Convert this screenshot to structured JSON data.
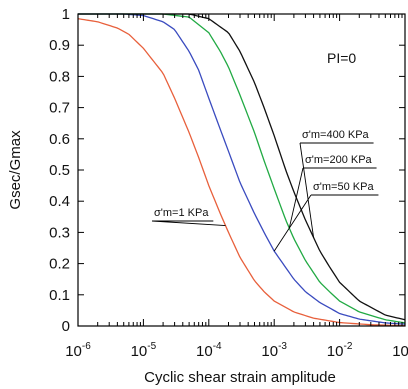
{
  "chart_data": {
    "type": "line",
    "xlabel": "Cyclic shear strain amplitude",
    "ylabel": "Gsec/Gmax",
    "x_scale": "log",
    "xlim": [
      1e-06,
      0.1
    ],
    "ylim": [
      0,
      1
    ],
    "x_ticks": [
      {
        "value": 1e-06,
        "base": "10",
        "exp": "-6"
      },
      {
        "value": 1e-05,
        "base": "10",
        "exp": "-5"
      },
      {
        "value": 0.0001,
        "base": "10",
        "exp": "-4"
      },
      {
        "value": 0.001,
        "base": "10",
        "exp": "-3"
      },
      {
        "value": 0.01,
        "base": "10",
        "exp": "-2"
      },
      {
        "value": 0.1,
        "base": "10",
        "exp": "-1"
      }
    ],
    "y_ticks": [
      "0",
      "0.1",
      "0.2",
      "0.3",
      "0.4",
      "0.5",
      "0.6",
      "0.7",
      "0.8",
      "0.9",
      "1"
    ],
    "grid": false,
    "annotation_pi": "PI=0",
    "series": [
      {
        "name": "σ'm=1 KPa",
        "color": "#e8603c",
        "points": [
          [
            1e-06,
            0.985
          ],
          [
            2e-06,
            0.975
          ],
          [
            4e-06,
            0.955
          ],
          [
            6e-06,
            0.935
          ],
          [
            1e-05,
            0.89
          ],
          [
            2e-05,
            0.81
          ],
          [
            3e-05,
            0.73
          ],
          [
            5e-05,
            0.62
          ],
          [
            7e-05,
            0.54
          ],
          [
            0.0001,
            0.45
          ],
          [
            0.00015,
            0.36
          ],
          [
            0.0002,
            0.3
          ],
          [
            0.0003,
            0.22
          ],
          [
            0.0005,
            0.145
          ],
          [
            0.0007,
            0.11
          ],
          [
            0.001,
            0.08
          ],
          [
            0.002,
            0.045
          ],
          [
            0.004,
            0.025
          ],
          [
            0.01,
            0.011
          ],
          [
            0.03,
            0.004
          ],
          [
            0.1,
            0.001
          ]
        ]
      },
      {
        "name": "σ'm=50 KPa",
        "color": "#3a4bbf",
        "points": [
          [
            1e-06,
            1.0
          ],
          [
            5e-06,
            1.0
          ],
          [
            1e-05,
            0.995
          ],
          [
            2e-05,
            0.975
          ],
          [
            3e-05,
            0.95
          ],
          [
            5e-05,
            0.88
          ],
          [
            7e-05,
            0.82
          ],
          [
            0.0001,
            0.73
          ],
          [
            0.00015,
            0.63
          ],
          [
            0.0002,
            0.56
          ],
          [
            0.0003,
            0.46
          ],
          [
            0.0005,
            0.36
          ],
          [
            0.0007,
            0.3
          ],
          [
            0.001,
            0.24
          ],
          [
            0.002,
            0.15
          ],
          [
            0.003,
            0.11
          ],
          [
            0.005,
            0.075
          ],
          [
            0.01,
            0.04
          ],
          [
            0.02,
            0.022
          ],
          [
            0.05,
            0.01
          ],
          [
            0.1,
            0.006
          ]
        ]
      },
      {
        "name": "σ'm=200 KPa",
        "color": "#22aa44",
        "points": [
          [
            1e-06,
            1.0
          ],
          [
            2e-05,
            1.0
          ],
          [
            5e-05,
            0.99
          ],
          [
            0.0001,
            0.94
          ],
          [
            0.00015,
            0.88
          ],
          [
            0.0002,
            0.83
          ],
          [
            0.0003,
            0.74
          ],
          [
            0.0005,
            0.62
          ],
          [
            0.0007,
            0.53
          ],
          [
            0.001,
            0.44
          ],
          [
            0.0015,
            0.34
          ],
          [
            0.002,
            0.28
          ],
          [
            0.003,
            0.21
          ],
          [
            0.005,
            0.14
          ],
          [
            0.007,
            0.11
          ],
          [
            0.01,
            0.08
          ],
          [
            0.02,
            0.045
          ],
          [
            0.05,
            0.02
          ],
          [
            0.1,
            0.01
          ]
        ]
      },
      {
        "name": "σ'm=400 KPa",
        "color": "#111111",
        "points": [
          [
            1e-06,
            1.0
          ],
          [
            5e-05,
            1.0
          ],
          [
            0.0001,
            0.985
          ],
          [
            0.0002,
            0.94
          ],
          [
            0.0003,
            0.88
          ],
          [
            0.0005,
            0.78
          ],
          [
            0.0007,
            0.7
          ],
          [
            0.001,
            0.61
          ],
          [
            0.0015,
            0.5
          ],
          [
            0.002,
            0.43
          ],
          [
            0.003,
            0.34
          ],
          [
            0.005,
            0.24
          ],
          [
            0.007,
            0.19
          ],
          [
            0.01,
            0.14
          ],
          [
            0.02,
            0.08
          ],
          [
            0.05,
            0.035
          ],
          [
            0.1,
            0.02
          ]
        ]
      }
    ],
    "annotations": [
      {
        "text": "σ'm=400 KPa",
        "series": 3
      },
      {
        "text": "σ'm=200 KPa",
        "series": 2
      },
      {
        "text": "σ'm=50 KPa",
        "series": 1
      },
      {
        "text": "σ'm=1 KPa",
        "series": 0
      }
    ]
  }
}
